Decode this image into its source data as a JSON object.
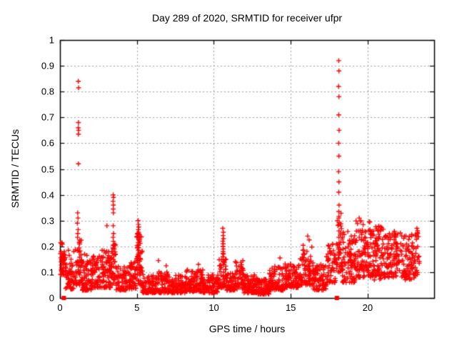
{
  "chart_data": {
    "type": "scatter",
    "title": "Day 289 of 2020, SRMTID for receiver ufpr",
    "xlabel": "GPS time / hours",
    "ylabel": "SRMTID / TECUs",
    "xlim": [
      0,
      24.32
    ],
    "ylim": [
      0,
      1
    ],
    "xticks": {
      "values": [
        0,
        5,
        10,
        15,
        20
      ],
      "labels": [
        "0",
        "5",
        "10",
        "15",
        "20"
      ]
    },
    "yticks": {
      "values": [
        0,
        0.1,
        0.2,
        0.3,
        0.4,
        0.5,
        0.6,
        0.7,
        0.8,
        0.9,
        1
      ],
      "labels": [
        "0",
        "0.1",
        "0.2",
        "0.3",
        "0.4",
        "0.5",
        "0.6",
        "0.7",
        "0.8",
        "0.9",
        "1"
      ]
    },
    "grid": {
      "on": true,
      "color": "#9b9b9b",
      "style": "dashed"
    },
    "border_color": "#000000",
    "legend": "none",
    "series": [
      {
        "marker": "plus",
        "color": "#ff0000",
        "comment_band_segments": "dense noise band read from pixels: [x_start,x_end,n_points,y_min,y_max,bottom_bias]",
        "band_segments": [
          [
            0.03,
            0.35,
            45,
            0.09,
            0.215,
            1.4
          ],
          [
            0.35,
            0.9,
            55,
            0.035,
            0.135,
            1.8
          ],
          [
            0.9,
            1.45,
            60,
            0.05,
            0.225,
            1.7
          ],
          [
            1.45,
            2.1,
            65,
            0.03,
            0.15,
            1.8
          ],
          [
            2.1,
            2.65,
            55,
            0.04,
            0.165,
            1.5
          ],
          [
            2.65,
            3.3,
            70,
            0.04,
            0.185,
            1.7
          ],
          [
            3.3,
            3.65,
            40,
            0.05,
            0.21,
            1.4
          ],
          [
            3.65,
            4.35,
            60,
            0.03,
            0.125,
            1.7
          ],
          [
            4.35,
            4.95,
            55,
            0.035,
            0.145,
            1.7
          ],
          [
            4.95,
            5.35,
            55,
            0.05,
            0.25,
            1.2
          ],
          [
            5.35,
            6.2,
            80,
            0.02,
            0.095,
            1.8
          ],
          [
            6.2,
            7.0,
            75,
            0.02,
            0.105,
            1.8
          ],
          [
            7.0,
            8.2,
            110,
            0.02,
            0.09,
            1.8
          ],
          [
            8.2,
            9.3,
            100,
            0.025,
            0.11,
            1.8
          ],
          [
            9.3,
            10.3,
            90,
            0.02,
            0.095,
            1.8
          ],
          [
            10.3,
            10.8,
            50,
            0.04,
            0.185,
            1.4
          ],
          [
            10.8,
            11.4,
            55,
            0.03,
            0.1,
            1.8
          ],
          [
            11.4,
            11.95,
            50,
            0.035,
            0.145,
            1.5
          ],
          [
            11.95,
            12.8,
            85,
            0.02,
            0.09,
            1.8
          ],
          [
            12.8,
            13.6,
            75,
            0.015,
            0.075,
            1.8
          ],
          [
            13.6,
            14.6,
            90,
            0.03,
            0.125,
            1.7
          ],
          [
            14.6,
            15.6,
            90,
            0.04,
            0.135,
            1.7
          ],
          [
            15.6,
            16.45,
            80,
            0.05,
            0.205,
            1.5
          ],
          [
            16.45,
            17.3,
            75,
            0.03,
            0.135,
            1.6
          ],
          [
            17.3,
            17.98,
            60,
            0.06,
            0.21,
            1.4
          ],
          [
            18.02,
            18.3,
            30,
            0.1,
            0.33,
            1.2
          ],
          [
            18.3,
            19.2,
            90,
            0.06,
            0.26,
            1.4
          ],
          [
            19.2,
            20.3,
            115,
            0.08,
            0.3,
            1.3
          ],
          [
            20.3,
            21.3,
            105,
            0.07,
            0.28,
            1.35
          ],
          [
            21.3,
            22.4,
            100,
            0.08,
            0.26,
            1.35
          ],
          [
            22.4,
            23.1,
            70,
            0.07,
            0.25,
            1.4
          ],
          [
            23.1,
            23.35,
            20,
            0.09,
            0.27,
            1.2
          ]
        ],
        "comment_feature_points": "individually visible points (spike columns and outliers), [x,y]",
        "feature_points": [
          [
            1.19,
            0.84
          ],
          [
            1.21,
            0.815
          ],
          [
            1.2,
            0.68
          ],
          [
            1.19,
            0.66
          ],
          [
            1.21,
            0.65
          ],
          [
            1.2,
            0.635
          ],
          [
            1.2,
            0.52
          ],
          [
            1.15,
            0.33
          ],
          [
            1.17,
            0.31
          ],
          [
            1.13,
            0.29
          ],
          [
            1.18,
            0.265
          ],
          [
            1.16,
            0.25
          ],
          [
            1.14,
            0.235
          ],
          [
            3.46,
            0.4
          ],
          [
            3.48,
            0.39
          ],
          [
            3.45,
            0.375
          ],
          [
            3.47,
            0.36
          ],
          [
            3.46,
            0.345
          ],
          [
            3.47,
            0.33
          ],
          [
            3.46,
            0.28
          ],
          [
            3.48,
            0.25
          ],
          [
            3.45,
            0.235
          ],
          [
            3.47,
            0.22
          ],
          [
            3.46,
            0.205
          ],
          [
            5.08,
            0.3
          ],
          [
            5.1,
            0.285
          ],
          [
            5.12,
            0.275
          ],
          [
            5.09,
            0.265
          ],
          [
            5.11,
            0.255
          ],
          [
            5.13,
            0.245
          ],
          [
            5.1,
            0.235
          ],
          [
            5.12,
            0.225
          ],
          [
            5.09,
            0.215
          ],
          [
            5.11,
            0.205
          ],
          [
            5.13,
            0.195
          ],
          [
            5.1,
            0.185
          ],
          [
            5.12,
            0.175
          ],
          [
            5.11,
            0.165
          ],
          [
            5.09,
            0.155
          ],
          [
            10.58,
            0.27
          ],
          [
            10.62,
            0.255
          ],
          [
            10.6,
            0.242
          ],
          [
            10.63,
            0.23
          ],
          [
            10.58,
            0.22
          ],
          [
            10.61,
            0.21
          ],
          [
            10.59,
            0.2
          ],
          [
            10.62,
            0.19
          ],
          [
            10.6,
            0.18
          ],
          [
            10.63,
            0.17
          ],
          [
            10.59,
            0.16
          ],
          [
            10.61,
            0.15
          ],
          [
            10.6,
            0.14
          ],
          [
            10.62,
            0.13
          ],
          [
            18.12,
            0.92
          ],
          [
            18.13,
            0.88
          ],
          [
            18.11,
            0.82
          ],
          [
            18.13,
            0.78
          ],
          [
            18.12,
            0.71
          ],
          [
            18.14,
            0.65
          ],
          [
            18.12,
            0.6
          ],
          [
            18.13,
            0.55
          ],
          [
            18.11,
            0.49
          ],
          [
            18.13,
            0.45
          ],
          [
            18.12,
            0.41
          ],
          [
            18.14,
            0.36
          ],
          [
            18.12,
            0.335
          ],
          [
            18.13,
            0.31
          ],
          [
            18.11,
            0.285
          ],
          [
            18.13,
            0.26
          ],
          [
            18.12,
            0.235
          ],
          [
            18.14,
            0.215
          ],
          [
            18.12,
            0.195
          ],
          [
            18.13,
            0.175
          ],
          [
            18.11,
            0.155
          ],
          [
            0.55,
            0.185
          ],
          [
            0.6,
            0.165
          ],
          [
            0.72,
            0.15
          ],
          [
            1.6,
            0.17
          ],
          [
            1.75,
            0.165
          ],
          [
            3.05,
            0.28
          ],
          [
            6.4,
            0.145
          ],
          [
            6.9,
            0.125
          ],
          [
            9.0,
            0.13
          ],
          [
            14.3,
            0.155
          ],
          [
            16.1,
            0.24
          ],
          [
            16.2,
            0.225
          ],
          [
            19.45,
            0.31
          ],
          [
            20.1,
            0.295
          ],
          [
            23.2,
            0.27
          ],
          [
            23.25,
            0.25
          ]
        ]
      },
      {
        "marker": "filled-square",
        "color": "#ff0000",
        "points": [
          [
            0.25,
            0
          ],
          [
            18.0,
            0
          ]
        ]
      }
    ]
  }
}
